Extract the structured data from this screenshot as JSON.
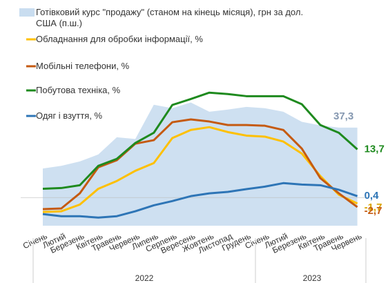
{
  "chart_data": {
    "type": "line",
    "categories": [
      "Січень",
      "Лютий",
      "Березень",
      "Квітень",
      "Травень",
      "Червень",
      "Липень",
      "Серпень",
      "Вересень",
      "Жовтень",
      "Листопад",
      "Грудень",
      "Січень",
      "Лютий",
      "Березень",
      "Квітень",
      "Травень",
      "Червень"
    ],
    "x_groups": [
      "2022",
      "2023"
    ],
    "ylim": [
      -8,
      32
    ],
    "y2lim": [
      15,
      47
    ],
    "series": [
      {
        "name": "Готівковий курс \"продажу\" (станом на кінець місяця), грн за дол. США (п.ш.)",
        "type": "area",
        "axis": "y2",
        "color": "#c9ddf0",
        "values": [
          28.0,
          28.6,
          29.6,
          31.2,
          35.1,
          34.7,
          42.5,
          41.7,
          43.0,
          40.9,
          41.4,
          42.0,
          41.7,
          40.9,
          38.6,
          37.8,
          37.3,
          37.3
        ],
        "value_labels": [
          null,
          null,
          null,
          null,
          null,
          null,
          null,
          null,
          null,
          null,
          null,
          null,
          null,
          null,
          null,
          null,
          null,
          "37,3"
        ],
        "label_color": "#8497b0"
      },
      {
        "name": "Обладнання для обробки інформації, %",
        "color": "#ffc000",
        "values": [
          -4.1,
          -3.9,
          -2.0,
          2.5,
          4.7,
          7.6,
          9.8,
          16.9,
          19.2,
          20.0,
          18.6,
          17.6,
          17.3,
          15.9,
          12.5,
          6.1,
          0.8,
          -1.7
        ],
        "value_labels": [
          null,
          null,
          null,
          null,
          null,
          null,
          null,
          null,
          null,
          null,
          null,
          null,
          null,
          null,
          null,
          null,
          null,
          "-1,7"
        ],
        "label_color": "#d9a400"
      },
      {
        "name": "Мобільні телефони, %",
        "color": "#c55a11",
        "values": [
          -3.3,
          -3.1,
          1.2,
          8.6,
          10.6,
          15.3,
          16.3,
          21.4,
          22.2,
          21.6,
          20.6,
          20.6,
          20.4,
          19.2,
          13.9,
          5.5,
          1.2,
          -2.7
        ],
        "value_labels": [
          null,
          null,
          null,
          null,
          null,
          null,
          null,
          null,
          null,
          null,
          null,
          null,
          null,
          null,
          null,
          null,
          null,
          "-2,7"
        ],
        "label_color": "#c55a11"
      },
      {
        "name": "Побутова техніка, %",
        "color": "#1e8a1e",
        "values": [
          2.5,
          2.7,
          3.5,
          9.0,
          11.0,
          15.5,
          18.4,
          26.3,
          28.0,
          29.8,
          29.4,
          28.8,
          28.8,
          28.8,
          26.5,
          20.6,
          18.4,
          13.7
        ],
        "value_labels": [
          null,
          null,
          null,
          null,
          null,
          null,
          null,
          null,
          null,
          null,
          null,
          null,
          null,
          null,
          null,
          null,
          null,
          "13,7"
        ],
        "label_color": "#1e8a1e"
      },
      {
        "name": "Одяг і взуття, %",
        "color": "#2e75b6",
        "values": [
          -4.7,
          -5.3,
          -5.3,
          -5.7,
          -5.3,
          -3.9,
          -2.2,
          -1.0,
          0.4,
          1.2,
          1.6,
          2.4,
          3.1,
          4.1,
          3.7,
          3.5,
          2.2,
          0.4
        ],
        "value_labels": [
          null,
          null,
          null,
          null,
          null,
          null,
          null,
          null,
          null,
          null,
          null,
          null,
          null,
          null,
          null,
          null,
          null,
          "0,4"
        ],
        "label_color": "#2e75b6"
      }
    ]
  }
}
